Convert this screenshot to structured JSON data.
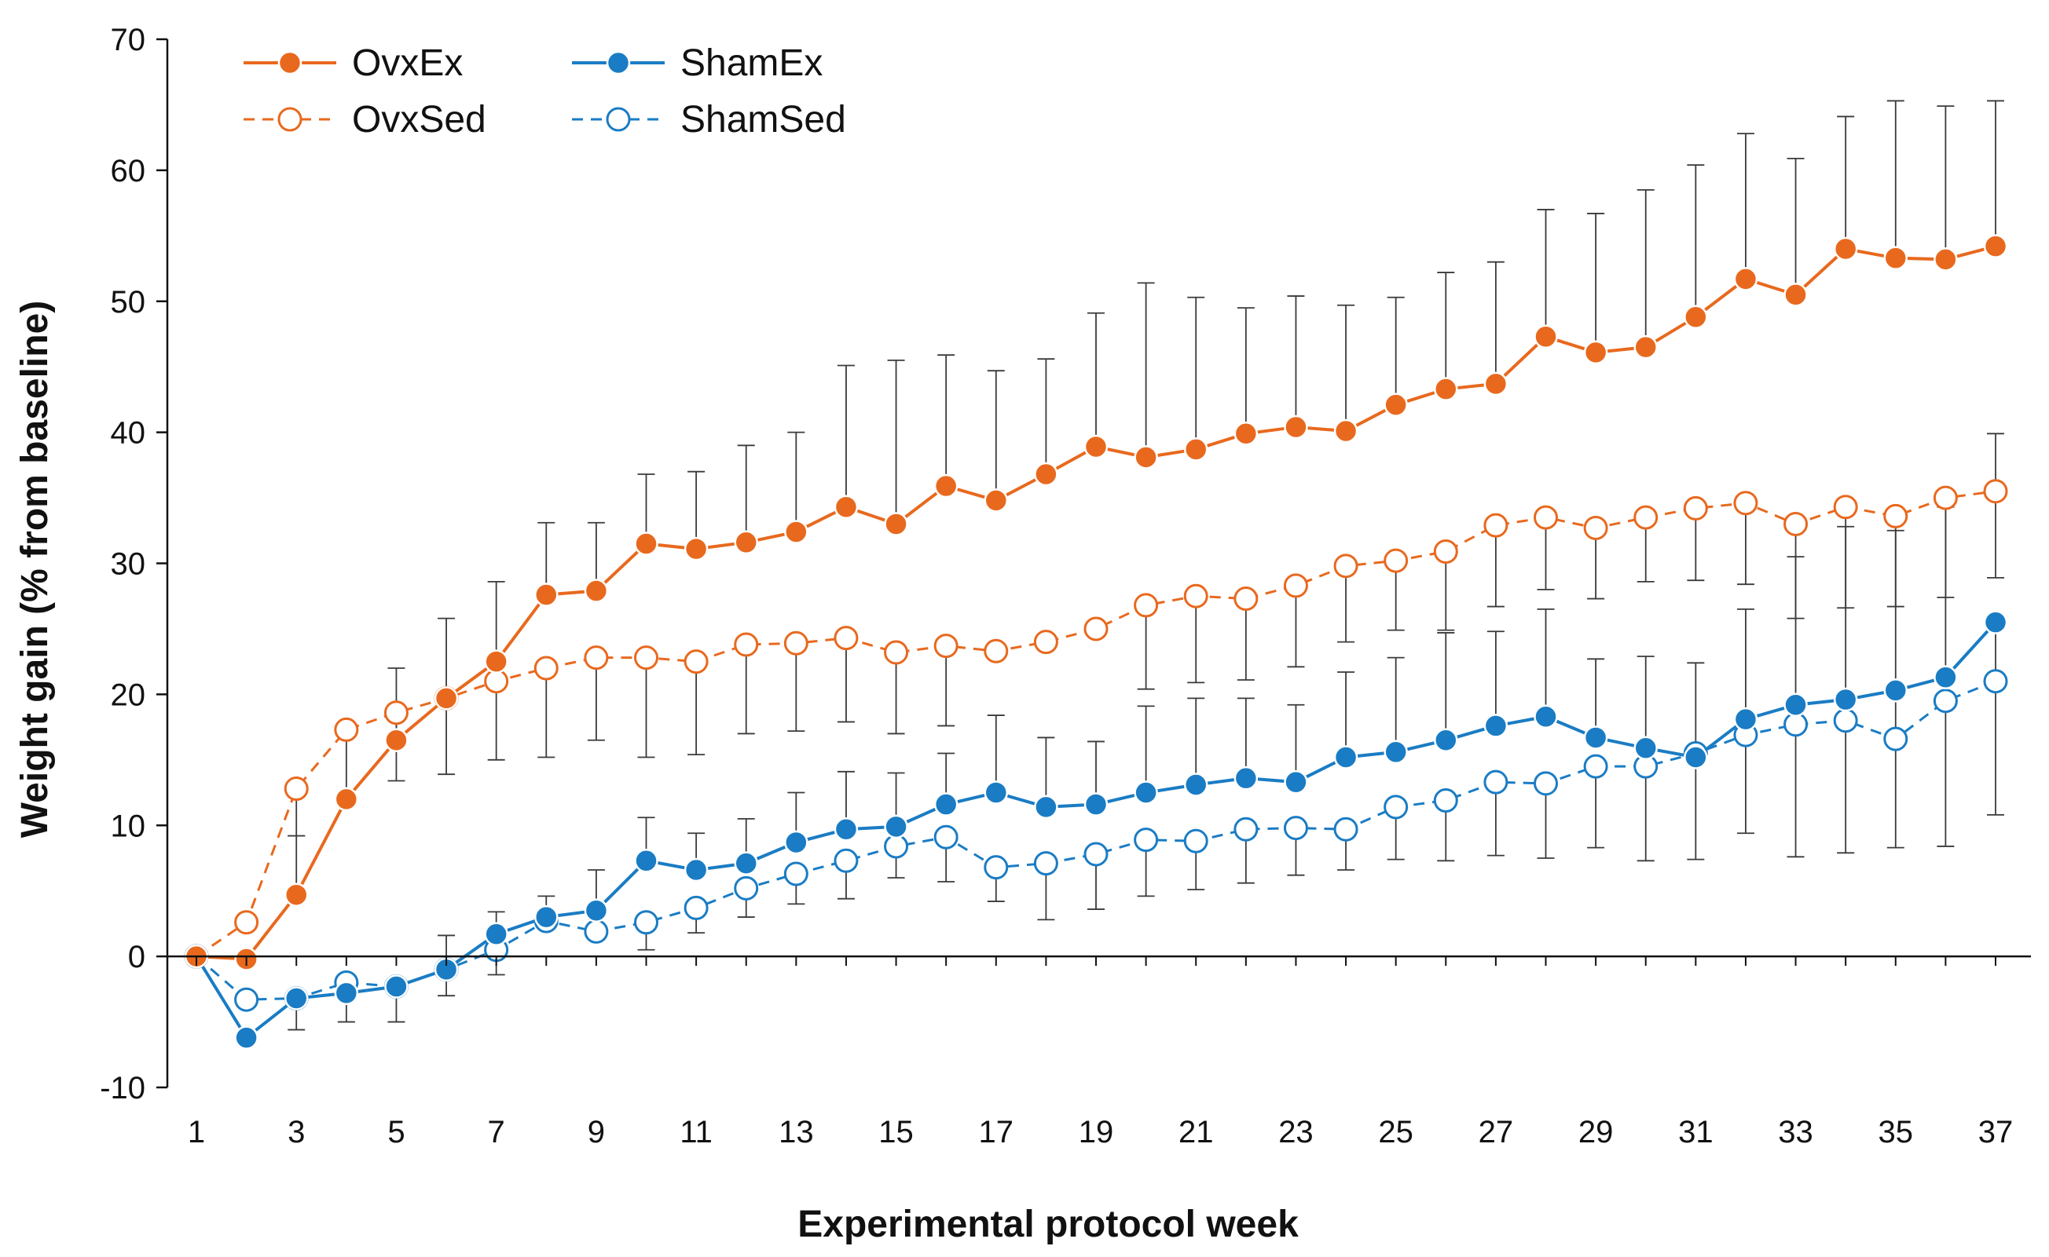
{
  "chart_data": {
    "type": "line",
    "title": "",
    "xlabel": "Experimental protocol week",
    "ylabel": "Weight gain (% from baseline)",
    "ylim": [
      -10,
      70
    ],
    "yticks": [
      -10,
      0,
      10,
      20,
      30,
      40,
      50,
      60,
      70
    ],
    "xlim": [
      1,
      37
    ],
    "xticks": [
      1,
      3,
      5,
      7,
      9,
      11,
      13,
      15,
      17,
      19,
      21,
      23,
      25,
      27,
      29,
      31,
      33,
      35,
      37
    ],
    "grid": false,
    "legend_position": "top-left",
    "x": [
      1,
      2,
      3,
      4,
      5,
      6,
      7,
      8,
      9,
      10,
      11,
      12,
      13,
      14,
      15,
      16,
      17,
      18,
      19,
      20,
      21,
      22,
      23,
      24,
      25,
      26,
      27,
      28,
      29,
      30,
      31,
      32,
      33,
      34,
      35,
      36,
      37
    ],
    "series": [
      {
        "name": "OvxEx",
        "color": "#E8691E",
        "style": "solid",
        "marker": "filled-circle",
        "values": [
          0,
          -0.2,
          4.7,
          12,
          16.5,
          19.7,
          22.5,
          27.6,
          27.9,
          31.5,
          31.1,
          31.6,
          32.4,
          34.3,
          33,
          35.9,
          34.8,
          36.8,
          38.9,
          38.1,
          38.7,
          39.9,
          40.4,
          40.1,
          42.1,
          43.3,
          43.7,
          47.3,
          46.1,
          46.5,
          48.8,
          51.7,
          50.5,
          54,
          53.3,
          53.2,
          54.2
        ],
        "error_upper": [
          0,
          0,
          9.2,
          16.8,
          22,
          25.8,
          28.6,
          33.1,
          33.1,
          36.8,
          37,
          39,
          40,
          45.1,
          45.5,
          45.9,
          44.7,
          45.6,
          49.1,
          51.4,
          50.3,
          49.5,
          50.4,
          49.7,
          50.3,
          52.2,
          53,
          57,
          56.7,
          58.5,
          60.4,
          62.8,
          60.9,
          64.1,
          65.3,
          64.9,
          65.3
        ]
      },
      {
        "name": "OvxSed",
        "color": "#E8691E",
        "style": "dashed",
        "marker": "open-circle",
        "values": [
          0,
          2.6,
          12.8,
          17.3,
          18.6,
          19.7,
          21,
          22,
          22.8,
          22.8,
          22.5,
          23.8,
          23.9,
          24.3,
          23.2,
          23.7,
          23.3,
          24,
          25,
          26.8,
          27.5,
          27.3,
          28.3,
          29.8,
          30.2,
          30.9,
          32.9,
          33.5,
          32.7,
          33.5,
          34.2,
          34.6,
          33,
          34.3,
          33.6,
          35,
          35.5
        ],
        "error_lower": [
          0,
          0,
          9.2,
          0,
          13.4,
          13.9,
          15,
          15.2,
          16.5,
          15.2,
          15.4,
          17,
          17.2,
          17.9,
          17,
          17.6,
          0,
          0,
          0,
          20.4,
          20.9,
          21.1,
          22.1,
          24,
          24.9,
          24.9,
          26.7,
          28,
          27.3,
          28.6,
          28.7,
          28.4,
          25.8,
          26.6,
          26.7,
          27.4,
          28.9
        ],
        "error_upper": [
          0,
          0,
          0,
          0,
          0,
          0,
          0,
          0,
          0,
          0,
          0,
          0,
          0,
          0,
          0,
          0,
          0,
          0,
          0,
          0,
          0,
          0,
          0,
          0,
          0,
          0,
          0,
          0,
          0,
          0,
          0,
          0,
          0,
          0,
          0,
          0,
          39.9
        ]
      },
      {
        "name": "ShamEx",
        "color": "#1A7CC4",
        "style": "solid",
        "marker": "filled-circle",
        "values": [
          0,
          -6.2,
          -3.2,
          -2.8,
          -2.3,
          -1,
          1.7,
          3,
          3.5,
          7.3,
          6.6,
          7.1,
          8.7,
          9.7,
          9.9,
          11.6,
          12.5,
          11.4,
          11.6,
          12.5,
          13.1,
          13.6,
          13.3,
          15.2,
          15.6,
          16.5,
          17.6,
          18.3,
          16.7,
          15.9,
          15.2,
          18.1,
          19.2,
          19.6,
          20.3,
          21.3,
          25.5
        ],
        "error_upper": [
          0,
          0,
          0,
          0,
          0,
          1.6,
          3.4,
          4.6,
          6.6,
          10.6,
          9.4,
          10.5,
          12.5,
          14.1,
          14,
          15.5,
          18.4,
          16.7,
          16.4,
          19.1,
          19.7,
          19.7,
          19.2,
          21.7,
          22.8,
          24.7,
          24.8,
          26.5,
          22.7,
          22.9,
          22.4,
          26.5,
          30.5,
          32.8,
          32.5,
          34.3,
          0
        ],
        "error_lower": [
          0,
          0,
          0,
          0,
          0,
          0,
          0,
          0,
          0,
          0,
          0,
          0,
          0,
          0,
          0,
          0,
          0,
          0,
          0,
          0,
          0,
          0,
          0,
          0,
          0,
          0,
          0,
          0,
          0,
          0,
          7.4,
          9.4,
          7.6,
          7.9,
          8.3,
          8.4,
          10.8
        ]
      },
      {
        "name": "ShamSed",
        "color": "#1A7CC4",
        "style": "dashed",
        "marker": "open-circle",
        "values": [
          0,
          -3.3,
          -3.2,
          -2,
          -2.3,
          -1,
          0.5,
          2.7,
          1.9,
          2.6,
          3.7,
          5.2,
          6.3,
          7.3,
          8.4,
          9.1,
          6.8,
          7.1,
          7.8,
          8.9,
          8.8,
          9.7,
          9.8,
          9.7,
          11.4,
          11.9,
          13.3,
          13.2,
          14.5,
          14.5,
          15.5,
          16.9,
          17.7,
          18,
          16.6,
          19.5,
          21
        ],
        "error_lower": [
          0,
          0,
          -5.6,
          -5,
          -5,
          -3,
          -1.4,
          0,
          0,
          0.5,
          1.8,
          3,
          4,
          4.4,
          6,
          5.7,
          4.2,
          2.8,
          3.6,
          4.6,
          5.1,
          5.6,
          6.2,
          6.6,
          7.4,
          7.3,
          7.7,
          7.5,
          8.3,
          7.3,
          0,
          0,
          0,
          0,
          0,
          0,
          0
        ]
      }
    ]
  }
}
